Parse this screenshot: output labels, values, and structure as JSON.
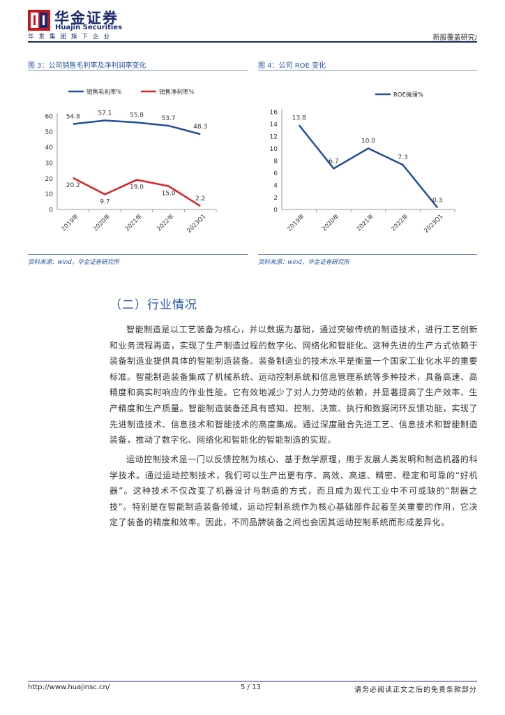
{
  "header": {
    "brand_cn": "华金证券",
    "brand_en": "Huajin Securities",
    "slogan": "华发集团旗下企业",
    "report_type": "新股覆盖研究/"
  },
  "figures": [
    {
      "caption": "图 3：公司销售毛利率及净利润率变化",
      "source": "资料来源：wind，华金证券研究所"
    },
    {
      "caption": "图 4：公司 ROE 变化",
      "source": "资料来源：wind，华金证券研究所"
    }
  ],
  "chart_data": [
    {
      "type": "line",
      "categories": [
        "2019年",
        "2020年",
        "2021年",
        "2022年",
        "2023Q1"
      ],
      "series": [
        {
          "name": "销售毛利率%",
          "values": [
            54.8,
            57.1,
            55.8,
            53.7,
            48.3
          ],
          "color": "#1f4e9c",
          "labels": [
            "54.8",
            "57.1",
            "55.8",
            "53.7",
            "48.3"
          ]
        },
        {
          "name": "销售净利率%",
          "values": [
            20.2,
            9.7,
            19.0,
            15.0,
            2.2
          ],
          "color": "#e02020",
          "labels": [
            "20.2",
            "9.7",
            "19.0",
            "15.0",
            "2.2"
          ]
        }
      ],
      "yticks": [
        "0",
        "10",
        "20",
        "30",
        "40",
        "50",
        "60"
      ],
      "ylim": [
        0,
        60
      ],
      "legend": "top"
    },
    {
      "type": "line",
      "categories": [
        "2019年",
        "2020年",
        "2021年",
        "2022年",
        "2023Q1"
      ],
      "series": [
        {
          "name": "ROE摊薄%",
          "values": [
            13.8,
            6.7,
            10.0,
            7.3,
            0.3
          ],
          "color": "#1f4e9c",
          "labels": [
            "13.8",
            "6.7",
            "10.0",
            "7.3",
            "0.3"
          ]
        }
      ],
      "yticks": [
        "0",
        "2",
        "4",
        "6",
        "8",
        "10",
        "12",
        "14",
        "16"
      ],
      "ylim": [
        0,
        16
      ],
      "legend": "top"
    }
  ],
  "section": {
    "title": "（二）行业情况",
    "paragraphs": [
      "智能制造是以工艺装备为核心，并以数据为基础，通过突破传统的制造技术，进行工艺创新和业务流程再造，实现了生产制造过程的数字化、网络化和智能化。这种先进的生产方式依赖于装备制造业提供具体的智能制造装备。装备制造业的技术水平是衡量一个国家工业化水平的重要标准。智能制造装备集成了机械系统、运动控制系统和信息管理系统等多种技术，具备高速、高精度和高实时响应的作业性能。它有效地减少了对人力劳动的依赖，并显著提高了生产效率、生产精度和生产质量。智能制造装备还具有感知、控制、决策、执行和数据闭环反馈功能，实现了先进制造技术、信息技术和智能技术的高度集成。通过深度融合先进工艺、信息技术和智能制造装备，推动了数字化、网络化和智能化的智能制造的实现。",
      "运动控制技术是一门以反馈控制为核心、基于数学原理，用于发展人类发明和制造机器的科学技术。通过运动控制技术，我们可以生产出更有序、高效、高速、精密、稳定和可靠的“好机器”。这种技术不仅改变了机器设计与制造的方式，而且成为现代工业中不可或缺的“制器之技”。特别是在智能制造装备领域，运动控制系统作为核心基础部件起着至关重要的作用，它决定了装备的精度和效率。因此，不同品牌装备之间也会因其运动控制系统而形成差异化。"
    ]
  },
  "footer": {
    "url": "http://www.huajinsc.cn/",
    "page": "5 / 13",
    "note": "请务必阅读正文之后的免责条款部分"
  }
}
